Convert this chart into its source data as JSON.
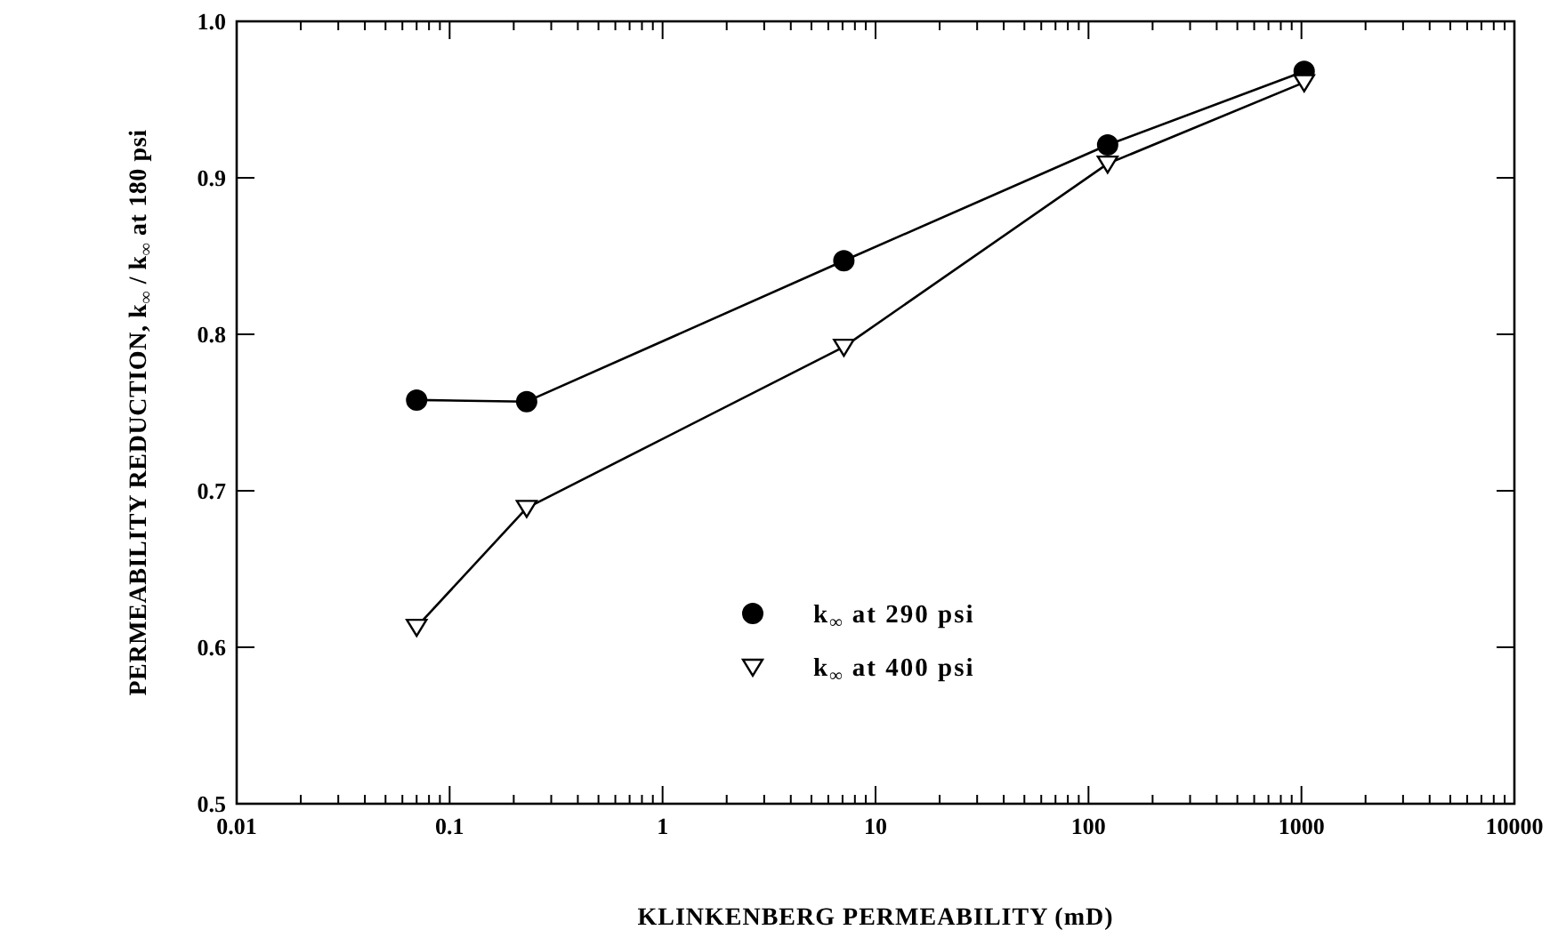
{
  "chart_data": {
    "type": "line",
    "xlabel": "KLINKENBERG PERMEABILITY (mD)",
    "ylabel": "PERMEABILITY REDUCTION, k$_{∞}$ / k$_{∞}$ at 180 psi",
    "log": "x",
    "xlim": [
      0.01,
      10000
    ],
    "ylim": [
      0.5,
      1.0
    ],
    "xticks": [
      0.01,
      {
        "value": 0.02,
        "label": null
      },
      {
        "value": 0.03,
        "label": null
      },
      {
        "value": 0.04,
        "label": null
      },
      {
        "value": 0.05,
        "label": null
      },
      {
        "value": 0.06,
        "label": null
      },
      {
        "value": 0.07,
        "label": null
      },
      {
        "value": 0.08,
        "label": null
      },
      {
        "value": 0.09,
        "label": null
      },
      0.1,
      {
        "value": 0.2,
        "label": null
      },
      {
        "value": 0.3,
        "label": null
      },
      {
        "value": 0.4,
        "label": null
      },
      {
        "value": 0.5,
        "label": null
      },
      {
        "value": 0.6,
        "label": null
      },
      {
        "value": 0.7,
        "label": null
      },
      {
        "value": 0.8,
        "label": null
      },
      {
        "value": 0.9,
        "label": null
      },
      1,
      {
        "value": 2,
        "label": null
      },
      {
        "value": 3,
        "label": null
      },
      {
        "value": 4,
        "label": null
      },
      {
        "value": 5,
        "label": null
      },
      {
        "value": 6,
        "label": null
      },
      {
        "value": 7,
        "label": null
      },
      {
        "value": 8,
        "label": null
      },
      {
        "value": 9,
        "label": null
      },
      10,
      {
        "value": 20,
        "label": null
      },
      {
        "value": 30,
        "label": null
      },
      {
        "value": 40,
        "label": null
      },
      {
        "value": 50,
        "label": null
      },
      {
        "value": 60,
        "label": null
      },
      {
        "value": 70,
        "label": null
      },
      {
        "value": 80,
        "label": null
      },
      {
        "value": 90,
        "label": null
      },
      100,
      {
        "value": 200,
        "label": null
      },
      {
        "value": 300,
        "label": null
      },
      {
        "value": 400,
        "label": null
      },
      {
        "value": 500,
        "label": null
      },
      {
        "value": 600,
        "label": null
      },
      {
        "value": 700,
        "label": null
      },
      {
        "value": 800,
        "label": null
      },
      {
        "value": 900,
        "label": null
      },
      1000,
      {
        "value": 2000,
        "label": null
      },
      {
        "value": 3000,
        "label": null
      },
      {
        "value": 4000,
        "label": null
      },
      {
        "value": 5000,
        "label": null
      },
      {
        "value": 6000,
        "label": null
      },
      {
        "value": 7000,
        "label": null
      },
      {
        "value": 8000,
        "label": null
      },
      {
        "value": 9000,
        "label": null
      },
      10000
    ],
    "yticks": [
      0.5,
      0.6,
      0.7,
      0.8,
      0.9,
      {
        "value": 1.0,
        "label": "1.0"
      }
    ],
    "grid": false,
    "legend": "bottom",
    "line_style": "solid",
    "x": [
      0.07,
      0.23,
      7.1,
      123,
      1030
    ],
    "series": [
      {
        "name": "k$_{∞}$ at 290 psi",
        "color": "#000000",
        "marker": "circle",
        "values": [
          0.758,
          0.757,
          0.847,
          0.921,
          0.968
        ]
      },
      {
        "name": "k$_{∞}$ at 400 psi",
        "color": "#000000",
        "marker": "triangle",
        "values": [
          0.613,
          0.689,
          0.792,
          0.909,
          0.961
        ]
      }
    ]
  }
}
